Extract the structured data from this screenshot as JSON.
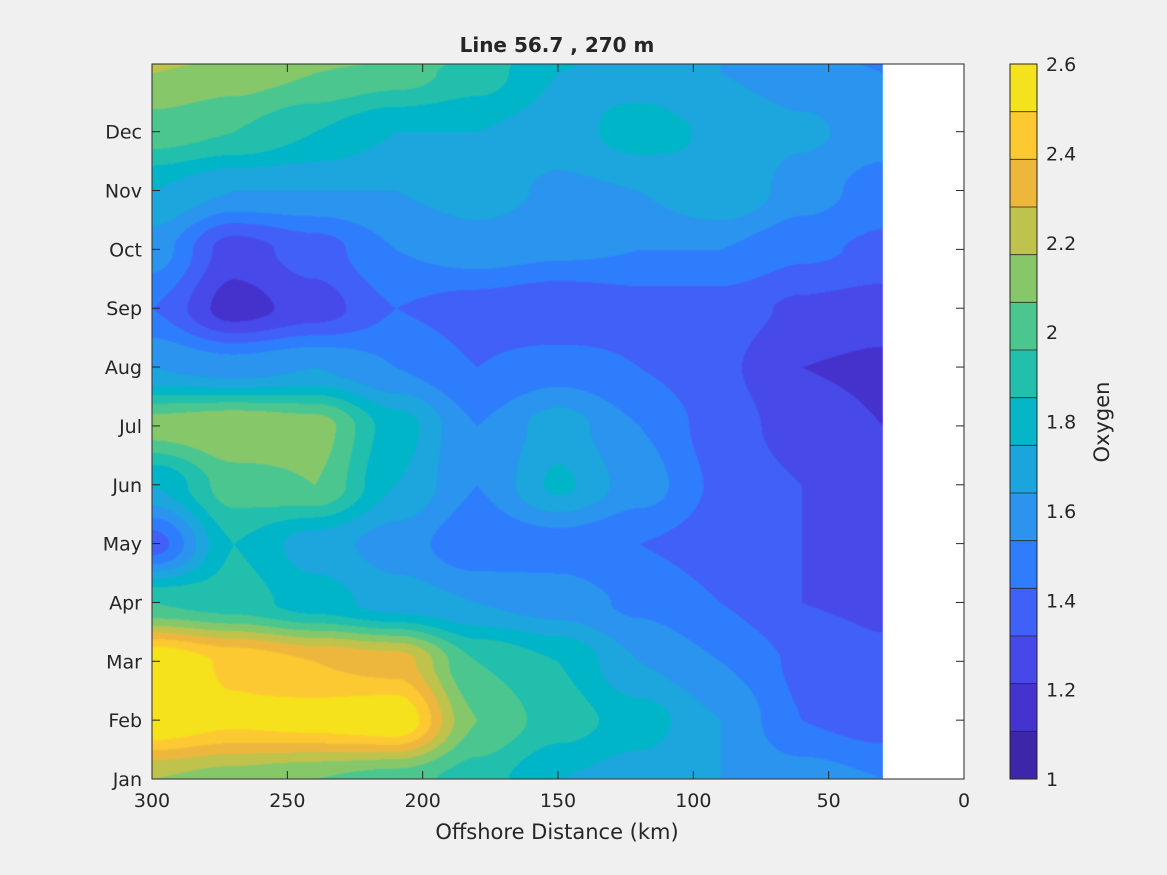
{
  "chart_data": {
    "type": "heatmap",
    "subtype": "filled-contour",
    "title": "Line 56.7 , 270 m",
    "xlabel": "Offshore Distance (km)",
    "ylabel": "",
    "xlim": [
      0,
      300
    ],
    "x_reversed": true,
    "x_ticks": [
      300,
      250,
      200,
      150,
      100,
      50,
      0
    ],
    "y_ticks": [
      "Jan",
      "Feb",
      "Mar",
      "Apr",
      "May",
      "Jun",
      "Jul",
      "Aug",
      "Sep",
      "Oct",
      "Nov",
      "Dec"
    ],
    "colorbar": {
      "label": "Oxygen",
      "range": [
        1,
        2.6
      ],
      "step": 0.1,
      "ticks": [
        1,
        1.2,
        1.4,
        1.6,
        1.8,
        2,
        2.2,
        2.4,
        2.6
      ],
      "tick_labels": [
        "1",
        "1.2",
        "1.4",
        "1.6",
        "1.8",
        "2",
        "2.2",
        "2.4",
        "2.6"
      ],
      "placement": "right",
      "colormap": "parula"
    },
    "no_data_x_range_km": [
      0,
      30
    ],
    "grid": false,
    "x": [
      300,
      270,
      240,
      210,
      180,
      150,
      120,
      90,
      60,
      30
    ],
    "y_months": [
      "Jan",
      "Feb",
      "Mar",
      "Apr",
      "May",
      "Jun",
      "Jul",
      "Aug",
      "Sep",
      "Oct",
      "Nov",
      "Dec"
    ],
    "z": [
      [
        2.1,
        2.05,
        2.0,
        1.95,
        1.85,
        1.7,
        1.65,
        1.6,
        1.55,
        1.5
      ],
      [
        2.5,
        2.42,
        2.45,
        2.5,
        2.0,
        1.85,
        1.75,
        1.6,
        1.4,
        1.35
      ],
      [
        2.5,
        2.38,
        2.3,
        2.25,
        1.9,
        1.8,
        1.6,
        1.5,
        1.38,
        1.32
      ],
      [
        1.9,
        1.85,
        1.75,
        1.65,
        1.6,
        1.55,
        1.48,
        1.4,
        1.3,
        1.28
      ],
      [
        1.35,
        1.8,
        1.65,
        1.55,
        1.42,
        1.45,
        1.4,
        1.35,
        1.3,
        1.3
      ],
      [
        1.7,
        1.95,
        2.0,
        1.7,
        1.5,
        1.72,
        1.55,
        1.38,
        1.3,
        1.28
      ],
      [
        2.05,
        2.1,
        2.05,
        1.75,
        1.5,
        1.65,
        1.5,
        1.35,
        1.25,
        1.2
      ],
      [
        1.6,
        1.55,
        1.6,
        1.5,
        1.4,
        1.45,
        1.4,
        1.32,
        1.2,
        1.18
      ],
      [
        1.4,
        1.15,
        1.25,
        1.4,
        1.35,
        1.3,
        1.35,
        1.35,
        1.28,
        1.25
      ],
      [
        1.55,
        1.25,
        1.35,
        1.5,
        1.55,
        1.52,
        1.5,
        1.5,
        1.42,
        1.38
      ],
      [
        1.7,
        1.6,
        1.6,
        1.6,
        1.65,
        1.58,
        1.6,
        1.7,
        1.55,
        1.45
      ],
      [
        1.95,
        1.9,
        1.8,
        1.7,
        1.7,
        1.65,
        1.75,
        1.68,
        1.62,
        1.55
      ]
    ],
    "colors": {
      "figure_bg": "#f0f0f0",
      "axes_bg": "#ffffff",
      "axis_color": "#262626",
      "parula": [
        "#3e26a8",
        "#4433cd",
        "#4648e9",
        "#4061f8",
        "#2f7dfd",
        "#2c94ef",
        "#1aa6dd",
        "#06b5c8",
        "#22bfac",
        "#4bc68e",
        "#86c76a",
        "#bfc24c",
        "#edb73c",
        "#fdc930",
        "#f5e21f"
      ]
    }
  }
}
